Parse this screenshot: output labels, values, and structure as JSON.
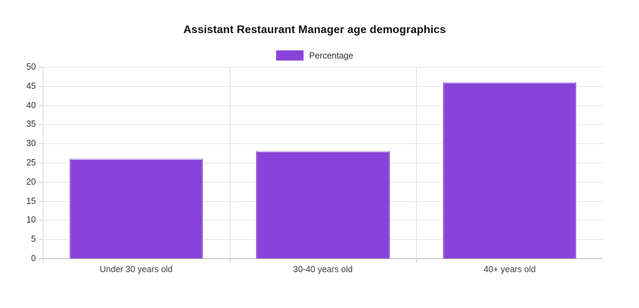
{
  "chart_data": {
    "type": "bar",
    "title": "Assistant Restaurant Manager age demographics",
    "categories": [
      "Under 30 years old",
      "30-40 years old",
      "40+ years old"
    ],
    "series": [
      {
        "name": "Percentage",
        "values": [
          26,
          28,
          46
        ]
      }
    ],
    "xlabel": "",
    "ylabel": "",
    "ylim": [
      0,
      50
    ],
    "yticks": [
      0,
      5,
      10,
      15,
      20,
      25,
      30,
      35,
      40,
      45,
      50
    ],
    "grid": true,
    "legend_position": "top",
    "colors": {
      "bar_fill": "#8843d8",
      "bar_border_side": "#9d63dd",
      "bar_border_top": "#d3c0f0",
      "grid_line": "#e6e6e6",
      "zero_line": "#b5b5b5",
      "tick_text": "#333333",
      "title_text": "#111111"
    }
  }
}
